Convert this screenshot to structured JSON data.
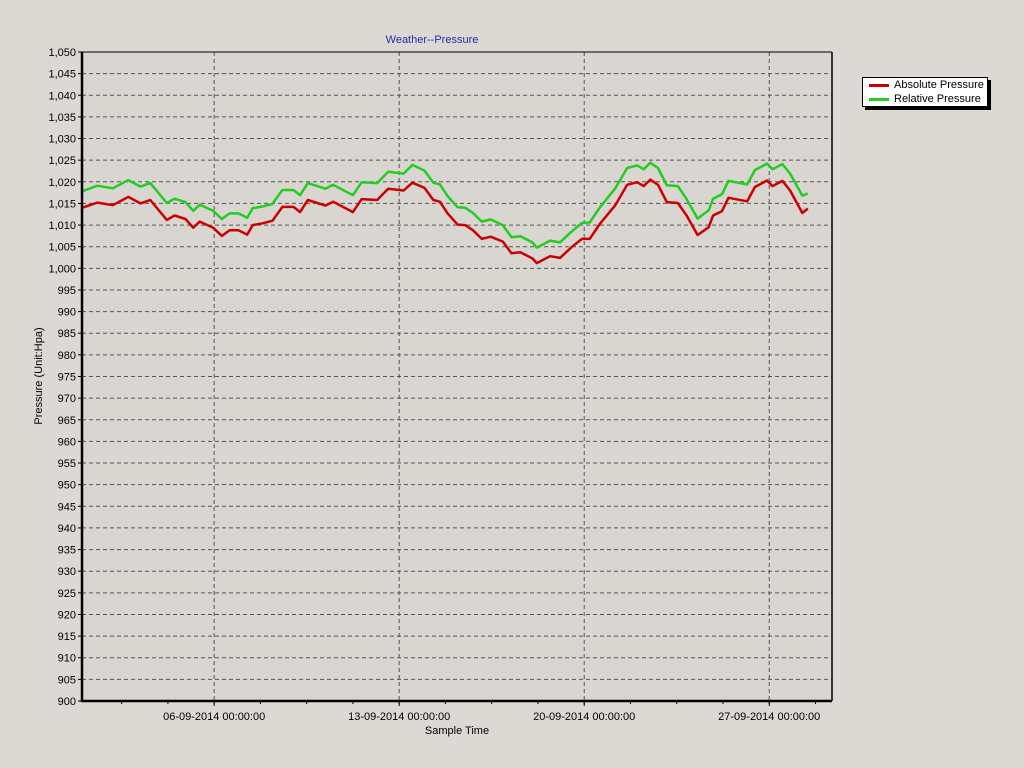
{
  "chart_data": {
    "type": "line",
    "title": "Weather--Pressure",
    "xlabel": "Sample Time",
    "ylabel": "Pressure (Unit:Hpa)",
    "ylim": [
      900,
      1050
    ],
    "ytick_step": 5,
    "xlim": [
      "01-09-2014 00:00",
      "29-09-2014 09:00"
    ],
    "xticks": [
      "06-09-2014 00:00:00",
      "13-09-2014 00:00:00",
      "20-09-2014 00:00:00",
      "27-09-2014 00:00:00"
    ],
    "grid": true,
    "legend_position": "top-right",
    "x": [
      "01-09-2014 00:00",
      "01-09-2014 14:00",
      "02-09-2014 04:00",
      "02-09-2014 18:00",
      "03-09-2014 05:00",
      "03-09-2014 14:00",
      "04-09-2014 05:00",
      "04-09-2014 12:00",
      "04-09-2014 22:00",
      "05-09-2014 05:00",
      "05-09-2014 11:00",
      "05-09-2014 23:00",
      "06-09-2014 07:00",
      "06-09-2014 14:00",
      "06-09-2014 22:00",
      "07-09-2014 06:00",
      "07-09-2014 11:00",
      "07-09-2014 20:00",
      "08-09-2014 05:00",
      "08-09-2014 14:00",
      "09-09-2014 00:00",
      "09-09-2014 06:00",
      "09-09-2014 13:00",
      "10-09-2014 05:00",
      "10-09-2014 12:00",
      "11-09-2014 06:00",
      "11-09-2014 14:00",
      "12-09-2014 04:00",
      "12-09-2014 14:00",
      "13-09-2014 04:00",
      "13-09-2014 12:00",
      "13-09-2014 23:00",
      "14-09-2014 07:00",
      "14-09-2014 13:00",
      "14-09-2014 20:00",
      "15-09-2014 05:00",
      "15-09-2014 12:00",
      "15-09-2014 19:00",
      "16-09-2014 03:00",
      "16-09-2014 11:00",
      "16-09-2014 22:00",
      "17-09-2014 06:00",
      "17-09-2014 14:00",
      "18-09-2014 01:00",
      "18-09-2014 05:00",
      "18-09-2014 17:00",
      "19-09-2014 02:00",
      "19-09-2014 13:00",
      "19-09-2014 22:00",
      "20-09-2014 05:00",
      "20-09-2014 14:00",
      "21-09-2014 04:00",
      "21-09-2014 15:00",
      "22-09-2014 00:00",
      "22-09-2014 06:00",
      "22-09-2014 12:00",
      "22-09-2014 19:00",
      "23-09-2014 03:00",
      "23-09-2014 13:00",
      "23-09-2014 21:00",
      "24-09-2014 07:00",
      "24-09-2014 17:00",
      "24-09-2014 21:00",
      "25-09-2014 05:00",
      "25-09-2014 11:00",
      "26-09-2014 04:00",
      "26-09-2014 11:00",
      "26-09-2014 22:00",
      "27-09-2014 03:00",
      "27-09-2014 12:00",
      "27-09-2014 19:00",
      "28-09-2014 06:00",
      "28-09-2014 11:00"
    ],
    "series": [
      {
        "name": "Absolute Pressure",
        "color": "#cc0000",
        "values": [
          1014.0,
          1015.2,
          1014.6,
          1016.5,
          1015.0,
          1015.8,
          1011.2,
          1012.2,
          1011.4,
          1009.4,
          1010.8,
          1009.4,
          1007.5,
          1008.8,
          1008.8,
          1007.8,
          1010.0,
          1010.4,
          1011.0,
          1014.2,
          1014.2,
          1013.0,
          1015.8,
          1014.5,
          1015.4,
          1013.0,
          1016.0,
          1015.8,
          1018.4,
          1018.0,
          1019.8,
          1018.6,
          1015.8,
          1015.4,
          1012.7,
          1010.1,
          1010.0,
          1008.8,
          1006.8,
          1007.3,
          1006.2,
          1003.5,
          1003.7,
          1002.3,
          1001.2,
          1002.8,
          1002.4,
          1005.0,
          1006.8,
          1006.8,
          1010.2,
          1014.5,
          1019.3,
          1019.9,
          1019.0,
          1020.5,
          1019.3,
          1015.3,
          1015.1,
          1012.2,
          1007.7,
          1009.5,
          1012.2,
          1013.2,
          1016.3,
          1015.5,
          1018.8,
          1020.3,
          1019.0,
          1020.2,
          1018.0,
          1012.8,
          1013.8
        ]
      },
      {
        "name": "Relative Pressure",
        "color": "#22cc22",
        "values": [
          1017.8,
          1019.1,
          1018.5,
          1020.4,
          1018.9,
          1019.7,
          1015.1,
          1016.1,
          1015.3,
          1013.3,
          1014.7,
          1013.3,
          1011.4,
          1012.7,
          1012.7,
          1011.7,
          1013.9,
          1014.3,
          1014.9,
          1018.1,
          1018.1,
          1016.9,
          1019.7,
          1018.4,
          1019.3,
          1016.9,
          1019.9,
          1019.7,
          1022.3,
          1021.9,
          1023.9,
          1022.6,
          1019.8,
          1019.4,
          1016.7,
          1014.1,
          1014.0,
          1012.8,
          1010.8,
          1011.3,
          1010.0,
          1007.2,
          1007.4,
          1006.0,
          1004.8,
          1006.4,
          1006.0,
          1008.6,
          1010.5,
          1010.6,
          1014.0,
          1018.4,
          1023.2,
          1023.8,
          1022.9,
          1024.4,
          1023.2,
          1019.2,
          1019.0,
          1016.0,
          1011.5,
          1013.4,
          1016.1,
          1017.1,
          1020.2,
          1019.4,
          1022.7,
          1024.2,
          1022.9,
          1024.1,
          1021.9,
          1016.8,
          1017.3
        ]
      }
    ]
  }
}
